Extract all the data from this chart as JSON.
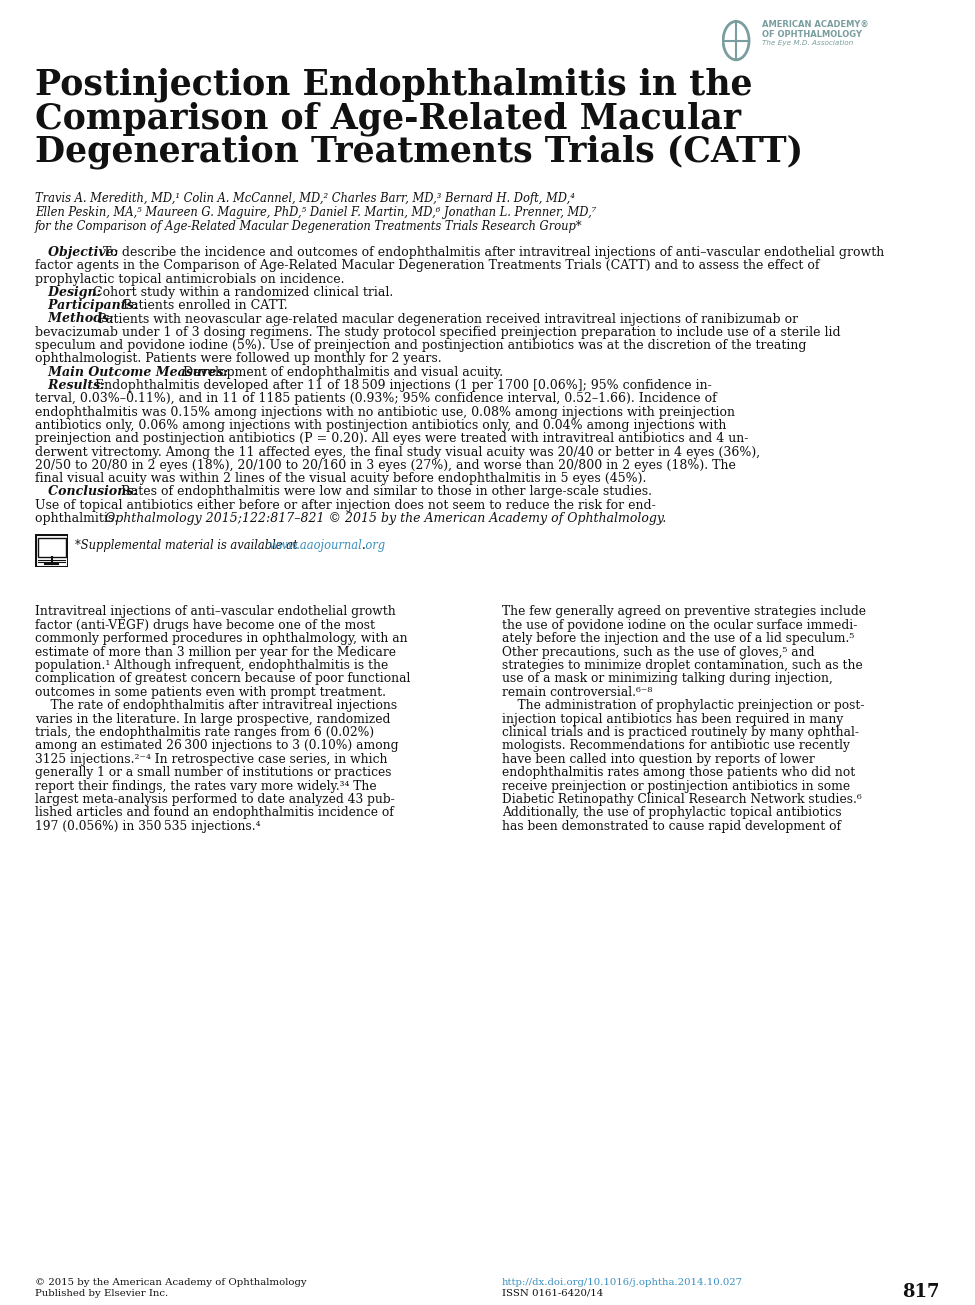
{
  "title_line1": "Postinjection Endophthalmitis in the",
  "title_line2": "Comparison of Age-Related Macular",
  "title_line3": "Degeneration Treatments Trials (CATT)",
  "author_line1": "Travis A. Meredith, MD,¹ Colin A. McCannel, MD,² Charles Barr, MD,³ Bernard H. Doft, MD,⁴",
  "author_line2": "Ellen Peskin, MA,⁵ Maureen G. Maguire, PhD,⁵ Daniel F. Martin, MD,⁶ Jonathan L. Prenner, MD,⁷",
  "author_line3": "for the Comparison of Age-Related Macular Degeneration Treatments Trials Research Group*",
  "abstract_lines": [
    [
      "bi",
      "   Objective:",
      "  To describe the incidence and outcomes of endophthalmitis after intravitreal injections of anti–vascular endothelial growth"
    ],
    [
      "n",
      "",
      "factor agents in the Comparison of Age-Related Macular Degeneration Treatments Trials (CATT) and to assess the effect of"
    ],
    [
      "n",
      "",
      "prophylactic topical antimicrobials on incidence."
    ],
    [
      "bi",
      "   Design:",
      "  Cohort study within a randomized clinical trial."
    ],
    [
      "bi",
      "   Participants:",
      "  Patients enrolled in CATT."
    ],
    [
      "bi",
      "   Methods:",
      "  Patients with neovascular age-related macular degeneration received intravitreal injections of ranibizumab or"
    ],
    [
      "n",
      "",
      "bevacizumab under 1 of 3 dosing regimens. The study protocol specified preinjection preparation to include use of a sterile lid"
    ],
    [
      "n",
      "",
      "speculum and povidone iodine (5%). Use of preinjection and postinjection antibiotics was at the discretion of the treating"
    ],
    [
      "n",
      "",
      "ophthalmologist. Patients were followed up monthly for 2 years."
    ],
    [
      "bi",
      "   Main Outcome Measures:",
      "  Development of endophthalmitis and visual acuity."
    ],
    [
      "bi",
      "   Results:",
      "  Endophthalmitis developed after 11 of 18 509 injections (1 per 1700 [0.06%]; 95% confidence in-"
    ],
    [
      "n",
      "",
      "terval, 0.03%–0.11%), and in 11 of 1185 patients (0.93%; 95% confidence interval, 0.52–1.66). Incidence of"
    ],
    [
      "n",
      "",
      "endophthalmitis was 0.15% among injections with no antibiotic use, 0.08% among injections with preinjection"
    ],
    [
      "n",
      "",
      "antibiotics only, 0.06% among injections with postinjection antibiotics only, and 0.04% among injections with"
    ],
    [
      "n",
      "",
      "preinjection and postinjection antibiotics (P = 0.20). All eyes were treated with intravitreal antibiotics and 4 un-"
    ],
    [
      "n",
      "",
      "derwent vitrectomy. Among the 11 affected eyes, the final study visual acuity was 20/40 or better in 4 eyes (36%),"
    ],
    [
      "n",
      "",
      "20/50 to 20/80 in 2 eyes (18%), 20/100 to 20/160 in 3 eyes (27%), and worse than 20/800 in 2 eyes (18%). The"
    ],
    [
      "n",
      "",
      "final visual acuity was within 2 lines of the visual acuity before endophthalmitis in 5 eyes (45%)."
    ],
    [
      "bi",
      "   Conclusions:",
      "  Rates of endophthalmitis were low and similar to those in other large-scale studies."
    ],
    [
      "n",
      "",
      "Use of topical antibiotics either before or after injection does not seem to reduce the risk for end-"
    ],
    [
      "n_italic_end",
      "",
      "ophthalmitis. "
    ]
  ],
  "conclusions_italic": "Ophthalmology 2015;122:817–821 © 2015 by the American Academy of Ophthalmology.",
  "supp_text": "*Supplemental material is available at ",
  "supp_url": "www.aaojournal.org",
  "body_col1_lines": [
    "Intravitreal injections of anti–vascular endothelial growth",
    "factor (anti-VEGF) drugs have become one of the most",
    "commonly performed procedures in ophthalmology, with an",
    "estimate of more than 3 million per year for the Medicare",
    "population.¹ Although infrequent, endophthalmitis is the",
    "complication of greatest concern because of poor functional",
    "outcomes in some patients even with prompt treatment.",
    "    The rate of endophthalmitis after intravitreal injections",
    "varies in the literature. In large prospective, randomized",
    "trials, the endophthalmitis rate ranges from 6 (0.02%)",
    "among an estimated 26 300 injections to 3 (0.10%) among",
    "3125 injections.²⁻⁴ In retrospective case series, in which",
    "generally 1 or a small number of institutions or practices",
    "report their findings, the rates vary more widely.³⁴ The",
    "largest meta-analysis performed to date analyzed 43 pub-",
    "lished articles and found an endophthalmitis incidence of",
    "197 (0.056%) in 350 535 injections.⁴"
  ],
  "body_col2_lines": [
    "The few generally agreed on preventive strategies include",
    "the use of povidone iodine on the ocular surface immedi-",
    "ately before the injection and the use of a lid speculum.⁵",
    "Other precautions, such as the use of gloves,⁵ and",
    "strategies to minimize droplet contamination, such as the",
    "use of a mask or minimizing talking during injection,",
    "remain controversial.⁶⁻⁸",
    "    The administration of prophylactic preinjection or post-",
    "injection topical antibiotics has been required in many",
    "clinical trials and is practiced routinely by many ophthal-",
    "mologists. Recommendations for antibiotic use recently",
    "have been called into question by reports of lower",
    "endophthalmitis rates among those patients who did not",
    "receive preinjection or postinjection antibiotics in some",
    "Diabetic Retinopathy Clinical Research Network studies.⁶",
    "Additionally, the use of prophylactic topical antibiotics",
    "has been demonstrated to cause rapid development of"
  ],
  "footer_left1": "© 2015 by the American Academy of Ophthalmology",
  "footer_left2": "Published by Elsevier Inc.",
  "footer_url": "http://dx.doi.org/10.1016/j.ophtha.2014.10.027",
  "footer_issn": "ISSN 0161-6420/14",
  "footer_page": "817",
  "bg": "#ffffff",
  "text_color": "#111111",
  "link_color": "#3a8fbf",
  "bar_color": "#1a1a1a",
  "logo_color": "#7a9e9f"
}
